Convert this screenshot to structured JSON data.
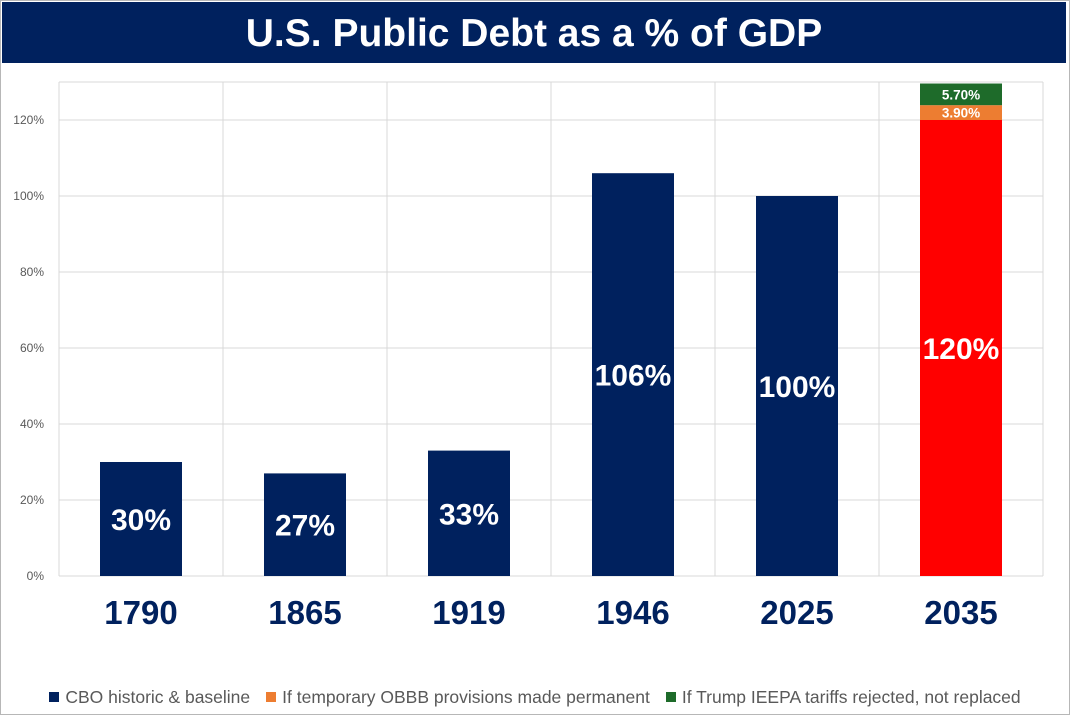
{
  "chart_data": {
    "type": "bar",
    "stacked": true,
    "title": "U.S. Public Debt as a % of GDP",
    "categories": [
      "1790",
      "1865",
      "1919",
      "1946",
      "2025",
      "2035"
    ],
    "ylim": [
      0,
      130
    ],
    "yticks": [
      0,
      20,
      40,
      60,
      80,
      100,
      120
    ],
    "ytick_labels": [
      "0%",
      "20%",
      "40%",
      "60%",
      "80%",
      "100%",
      "120%"
    ],
    "xlabel": "",
    "ylabel": "",
    "grid": true,
    "legend_position": "bottom",
    "series": [
      {
        "name": "CBO historic & baseline",
        "color": "#00215e",
        "values": [
          30,
          27,
          33,
          106,
          100,
          120
        ],
        "labels": [
          "30%",
          "27%",
          "33%",
          "106%",
          "100%",
          "120%"
        ],
        "point_colors": [
          null,
          null,
          null,
          null,
          null,
          "#ff0000"
        ]
      },
      {
        "name": "If temporary OBBB provisions made permanent",
        "color": "#ed7d31",
        "values": [
          null,
          null,
          null,
          null,
          null,
          3.9
        ],
        "labels": [
          null,
          null,
          null,
          null,
          null,
          "3.90%"
        ]
      },
      {
        "name": "If Trump IEEPA tariffs rejected, not replaced",
        "color": "#1e6b2a",
        "values": [
          null,
          null,
          null,
          null,
          null,
          5.7
        ],
        "labels": [
          null,
          null,
          null,
          null,
          null,
          "5.70%"
        ]
      }
    ]
  }
}
